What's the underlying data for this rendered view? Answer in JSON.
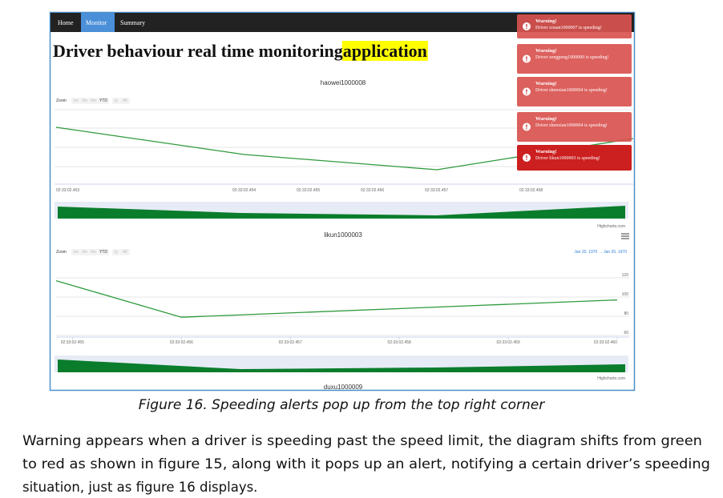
{
  "screenshot": {
    "nav": [
      "Home",
      "Monitor",
      "Summary"
    ],
    "title": "Driver behaviour real time monitoring ",
    "title_highlight": "application",
    "alerts": [
      {
        "heading": "Warning!",
        "message": "Driver zouan1000007 is speeding!"
      },
      {
        "heading": "Warning!",
        "message": "Driver zengpeng1000000 is speeding!"
      },
      {
        "heading": "Warning!",
        "message": "Driver shenxian1000004 is speeding!"
      },
      {
        "heading": "Warning!",
        "message": "Driver shenxian1000004 is speeding!"
      },
      {
        "heading": "Warning!",
        "message": "Driver likun1000003 is speeding!"
      }
    ],
    "zoom": [
      "Zoom",
      "1m",
      "3m",
      "6m",
      "YTD",
      "1y",
      "All"
    ],
    "credits": "Highcharts.com",
    "chart1": {
      "title": "haowei1000008",
      "x_labels": [
        "02:33:02.453",
        "02:33:02.454",
        "02:33:02.455",
        "02:33:02.456",
        "02:33:02.457",
        "02:33:02.458"
      ]
    },
    "chart2": {
      "type": "line",
      "title": "likun1000003",
      "range_from": "Jan 20, 1970",
      "range_arrow": "→",
      "range_to": "Jan 20, 1970",
      "x": [
        454.85,
        456,
        460
      ],
      "values": [
        117,
        79,
        97
      ],
      "color": "#2e9a3c",
      "xlim": [
        454.85,
        460
      ],
      "xticks": [
        {
          "value": 455,
          "label": "02:33:02.455"
        },
        {
          "value": 456,
          "label": "02:33:02.456"
        },
        {
          "value": 457,
          "label": "02:33:02.457"
        },
        {
          "value": 458,
          "label": "02:33:02.458"
        },
        {
          "value": 459,
          "label": "02:33:02.459"
        },
        {
          "value": 460,
          "label": "02:33:02.460"
        }
      ],
      "ylim": [
        60,
        120
      ],
      "yticks": [
        120,
        100,
        80,
        60
      ]
    },
    "chart3": {
      "title": "duxu1000009"
    }
  },
  "caption": "Figure 16. Speeding alerts pop up from the top right corner",
  "paragraph": [
    "Warning appears when a driver is speeding past the speed limit, the diagram shifts from green",
    "to red as shown in figure 15, along with it pops up an alert, notifying a certain driver’s speeding",
    "situation, just as figure 16 displays."
  ]
}
